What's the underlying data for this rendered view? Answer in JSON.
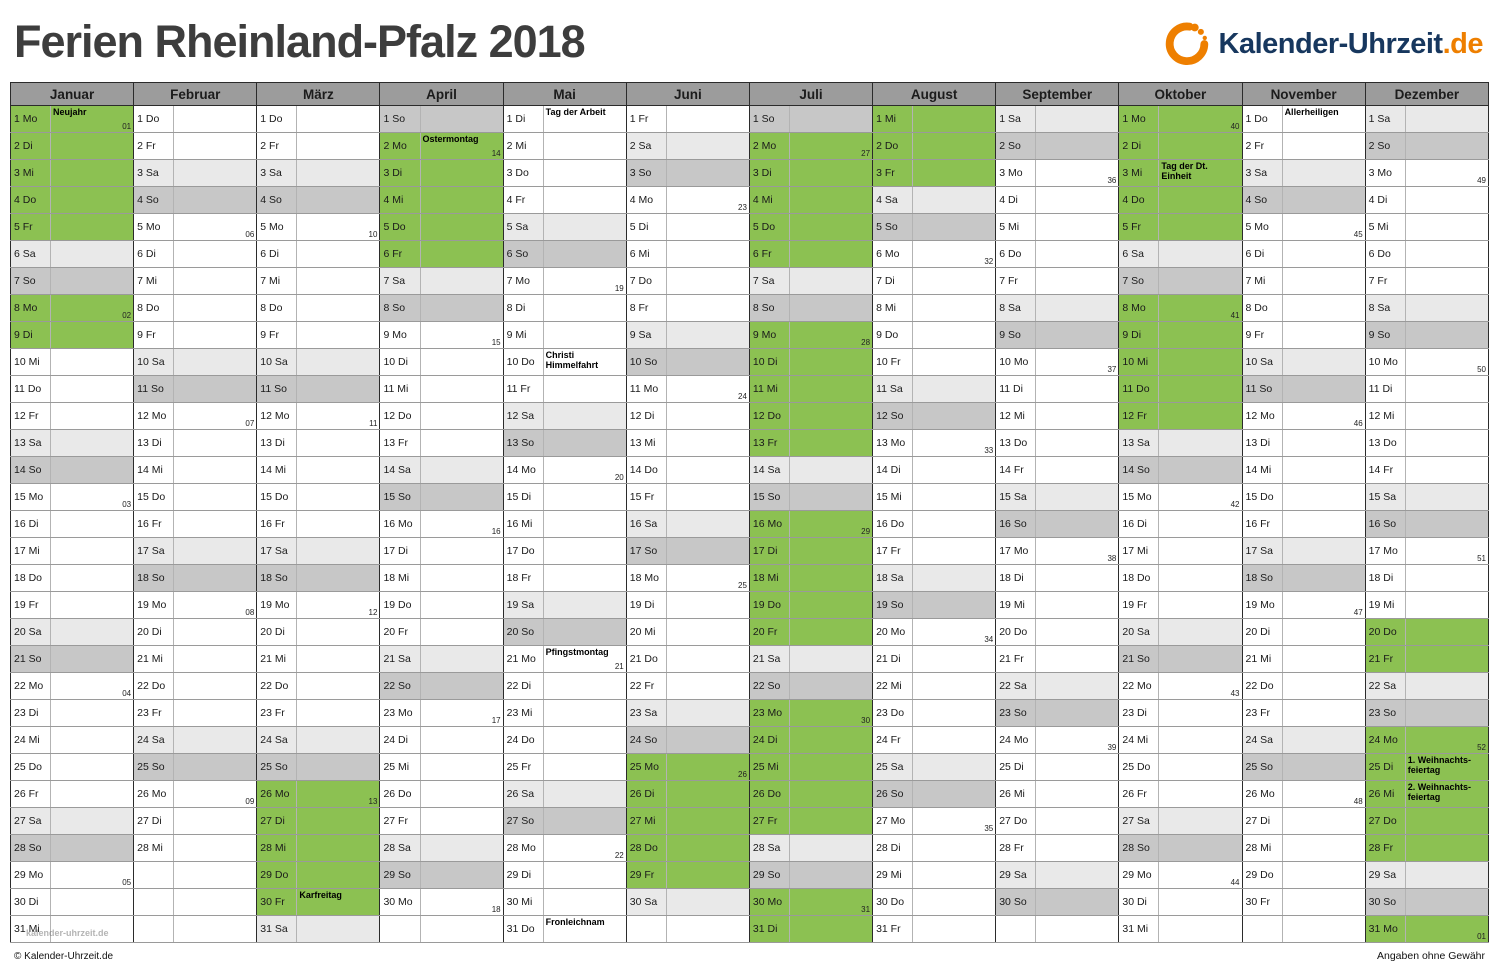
{
  "page": {
    "title": "Ferien Rheinland-Pfalz 2018",
    "logo": {
      "text": "Kalender-Uhrzeit",
      "suffix": ".de"
    },
    "footer_left": "© Kalender-Uhrzeit.de",
    "footer_right": "Angaben ohne Gewähr",
    "watermark": "kalender-uhrzeit.de"
  },
  "colors": {
    "ferien": "#8cc152",
    "saturday": "#e9e9e9",
    "sunday": "#c7c7c7",
    "header_bg": "#9c9c9c",
    "accent_orange": "#ee7f00",
    "logo_navy": "#17375e",
    "title_gray": "#3d3d3d"
  },
  "weekday_names": [
    "Mo",
    "Di",
    "Mi",
    "Do",
    "Fr",
    "Sa",
    "So"
  ],
  "months": [
    {
      "name": "Januar",
      "days": 31,
      "start": 0,
      "ferien": [
        [
          1,
          9
        ]
      ],
      "holidays": {
        "1": "Neujahr"
      },
      "weeks": {
        "1": "01",
        "8": "02",
        "15": "03",
        "22": "04",
        "29": "05"
      }
    },
    {
      "name": "Februar",
      "days": 28,
      "start": 3,
      "ferien": [],
      "holidays": {},
      "weeks": {
        "5": "06",
        "12": "07",
        "19": "08",
        "26": "09"
      }
    },
    {
      "name": "März",
      "days": 31,
      "start": 3,
      "ferien": [
        [
          26,
          31
        ]
      ],
      "holidays": {
        "30": "Karfreitag"
      },
      "weeks": {
        "5": "10",
        "12": "11",
        "19": "12",
        "26": "13"
      }
    },
    {
      "name": "April",
      "days": 30,
      "start": 6,
      "ferien": [
        [
          1,
          6
        ]
      ],
      "holidays": {
        "2": "Ostermontag"
      },
      "weeks": {
        "2": "14",
        "9": "15",
        "16": "16",
        "23": "17",
        "30": "18"
      }
    },
    {
      "name": "Mai",
      "days": 31,
      "start": 1,
      "ferien": [],
      "holidays": {
        "1": "Tag der Arbeit",
        "10": "Christi Himmelfahrt",
        "21": "Pfingstmontag",
        "31": "Fronleichnam"
      },
      "weeks": {
        "7": "19",
        "14": "20",
        "21": "21",
        "28": "22"
      }
    },
    {
      "name": "Juni",
      "days": 30,
      "start": 4,
      "ferien": [
        [
          25,
          30
        ]
      ],
      "holidays": {},
      "weeks": {
        "4": "23",
        "11": "24",
        "18": "25",
        "25": "26"
      }
    },
    {
      "name": "Juli",
      "days": 31,
      "start": 6,
      "ferien": [
        [
          1,
          31
        ]
      ],
      "holidays": {},
      "weeks": {
        "2": "27",
        "9": "28",
        "16": "29",
        "23": "30",
        "30": "31"
      }
    },
    {
      "name": "August",
      "days": 31,
      "start": 2,
      "ferien": [
        [
          1,
          3
        ]
      ],
      "holidays": {},
      "weeks": {
        "6": "32",
        "13": "33",
        "20": "34",
        "27": "35"
      }
    },
    {
      "name": "September",
      "days": 30,
      "start": 5,
      "ferien": [],
      "holidays": {},
      "weeks": {
        "3": "36",
        "10": "37",
        "17": "38",
        "24": "39"
      }
    },
    {
      "name": "Oktober",
      "days": 31,
      "start": 0,
      "ferien": [
        [
          1,
          12
        ]
      ],
      "holidays": {
        "3": "Tag der Dt. Einheit"
      },
      "weeks": {
        "1": "40",
        "8": "41",
        "15": "42",
        "22": "43",
        "29": "44"
      }
    },
    {
      "name": "November",
      "days": 30,
      "start": 3,
      "ferien": [],
      "holidays": {
        "1": "Allerheiligen"
      },
      "weeks": {
        "5": "45",
        "12": "46",
        "19": "47",
        "26": "48"
      }
    },
    {
      "name": "Dezember",
      "days": 31,
      "start": 5,
      "ferien": [
        [
          20,
          31
        ]
      ],
      "holidays": {
        "25": "1. Weihnachts-feiertag",
        "26": "2. Weihnachts-feiertag"
      },
      "weeks": {
        "3": "49",
        "10": "50",
        "17": "51",
        "24": "52",
        "31": "01"
      }
    }
  ]
}
